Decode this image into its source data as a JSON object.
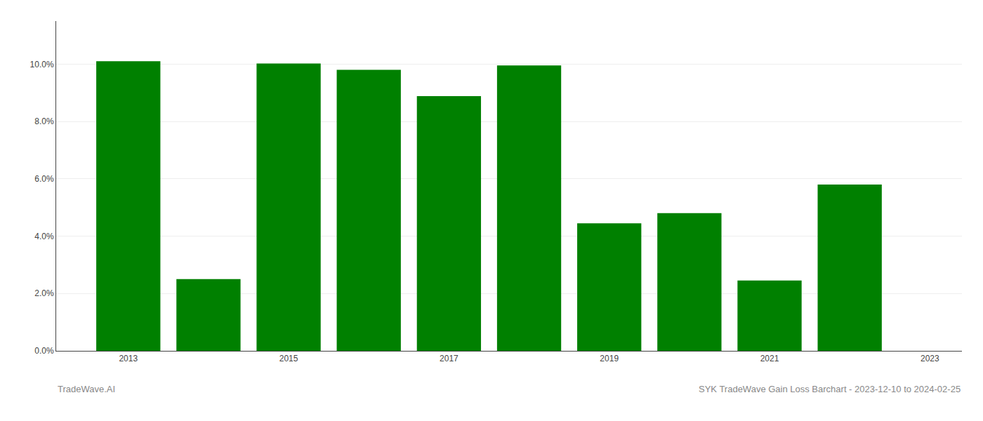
{
  "chart_data": {
    "type": "bar",
    "title": "SYK TradeWave Gain Loss Barchart - 2023-12-10 to 2024-02-25",
    "annotations": [
      "TradeWave.AI"
    ],
    "x": [
      2013,
      2014,
      2015,
      2016,
      2017,
      2018,
      2019,
      2020,
      2021,
      2022
    ],
    "values": [
      0.101,
      0.025,
      0.1002,
      0.098,
      0.0888,
      0.0995,
      0.0445,
      0.048,
      0.0245,
      0.058
    ],
    "color": "#008000",
    "xlim": [
      2012.1,
      2023.4
    ],
    "xticks": [
      2013,
      2015,
      2017,
      2019,
      2021,
      2023
    ],
    "ylim": [
      0,
      0.115
    ],
    "yticks": [
      {
        "value": 0.0,
        "label": "0.0%"
      },
      {
        "value": 0.02,
        "label": "2.0%"
      },
      {
        "value": 0.04,
        "label": "4.0%"
      },
      {
        "value": 0.06,
        "label": "6.0%"
      },
      {
        "value": 0.08,
        "label": "8.0%"
      },
      {
        "value": 0.1,
        "label": "10.0%"
      }
    ],
    "grid": true
  }
}
